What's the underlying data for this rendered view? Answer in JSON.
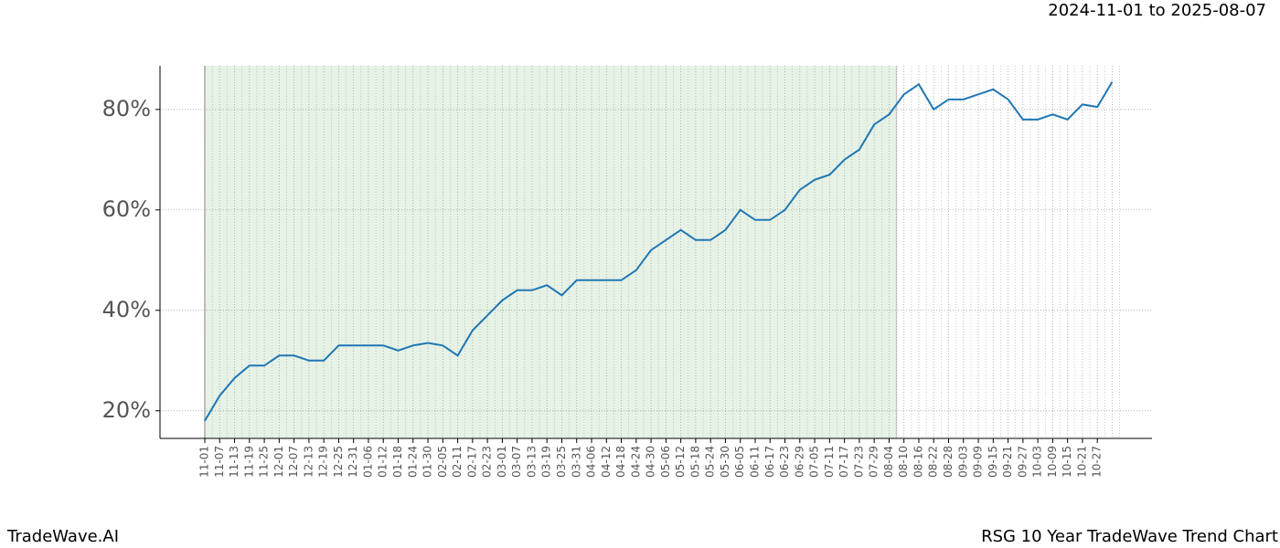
{
  "chart_data": {
    "type": "line",
    "title": "2024-11-01 to 2025-08-07",
    "footer_left": "TradeWave.AI",
    "footer_right": "RSG 10 Year TradeWave Trend Chart",
    "categories": [
      "11-01",
      "11-07",
      "11-13",
      "11-19",
      "11-25",
      "12-01",
      "12-07",
      "12-13",
      "12-19",
      "12-25",
      "12-31",
      "01-06",
      "01-12",
      "01-18",
      "01-24",
      "01-30",
      "02-05",
      "02-11",
      "02-17",
      "02-23",
      "03-01",
      "03-07",
      "03-13",
      "03-19",
      "03-25",
      "03-31",
      "04-06",
      "04-12",
      "04-18",
      "04-24",
      "04-30",
      "05-06",
      "05-12",
      "05-18",
      "05-24",
      "05-30",
      "06-05",
      "06-11",
      "06-17",
      "06-23",
      "06-29",
      "07-05",
      "07-11",
      "07-17",
      "07-23",
      "07-29",
      "08-04",
      "08-10",
      "08-16",
      "08-22",
      "08-28",
      "09-03",
      "09-09",
      "09-15",
      "09-21",
      "09-27",
      "10-03",
      "10-09",
      "10-15",
      "10-21",
      "10-27",
      null
    ],
    "series": [
      {
        "color": "#1f77b4",
        "values": [
          18,
          23,
          26.5,
          29,
          29,
          31,
          31,
          30,
          30,
          33,
          33,
          33,
          33,
          32,
          33,
          33.5,
          33,
          31,
          36,
          39,
          42,
          44,
          44,
          45,
          43,
          46,
          46,
          46,
          46,
          48,
          52,
          54,
          56,
          54,
          54,
          56,
          60,
          58,
          58,
          60,
          64,
          66,
          67,
          70,
          72,
          77,
          79,
          83,
          85,
          80,
          82,
          82,
          83,
          84,
          82,
          78,
          78,
          79,
          78,
          81,
          80.5,
          85.5
        ]
      }
    ],
    "ylim": [
      14.5,
      88.7
    ],
    "yticks": [
      {
        "value": 20,
        "label": "20%"
      },
      {
        "value": 40,
        "label": "40%"
      },
      {
        "value": 60,
        "label": "60%"
      },
      {
        "value": 80,
        "label": "80%"
      }
    ],
    "grid": true
  }
}
